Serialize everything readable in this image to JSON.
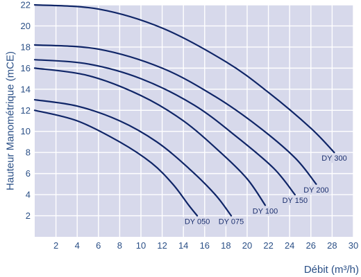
{
  "chart_data": {
    "type": "line",
    "title": "",
    "xlabel": "Débit (m³/h)",
    "ylabel": "Hauteur Manométrique (mCE)",
    "xlim": [
      0,
      30
    ],
    "ylim": [
      0,
      22
    ],
    "x_ticks": [
      2,
      4,
      6,
      8,
      10,
      12,
      14,
      16,
      18,
      20,
      22,
      24,
      26,
      28,
      30
    ],
    "y_ticks": [
      2,
      4,
      6,
      8,
      10,
      12,
      14,
      16,
      18,
      20,
      22
    ],
    "grid": true,
    "colors": {
      "plot_background": "#d7d9eb",
      "grid": "#ffffff",
      "curve": "#0f2567",
      "text": "#2a4f86"
    },
    "series": [
      {
        "name": "DY 050",
        "x": [
          0,
          4,
          8,
          11,
          13,
          14.5,
          15.3
        ],
        "y": [
          12,
          11,
          9,
          7,
          5,
          3,
          2
        ]
      },
      {
        "name": "DY 075",
        "x": [
          0,
          4,
          8,
          11.5,
          14.5,
          17,
          18.5
        ],
        "y": [
          13,
          12.4,
          11,
          9,
          6.5,
          4,
          2
        ]
      },
      {
        "name": "DY 100",
        "x": [
          0,
          5,
          10,
          14,
          17.5,
          20,
          21.7
        ],
        "y": [
          16,
          15.3,
          13.4,
          11,
          8,
          5.5,
          3
        ]
      },
      {
        "name": "DY 150",
        "x": [
          0,
          5,
          10,
          15,
          19,
          22.5,
          24.5
        ],
        "y": [
          16.8,
          16.4,
          15,
          12.5,
          9.5,
          6.5,
          4
        ]
      },
      {
        "name": "DY 200",
        "x": [
          0,
          6,
          12,
          17,
          21,
          24.5,
          26.5
        ],
        "y": [
          18.2,
          17.8,
          16,
          13.3,
          10.5,
          7.5,
          5
        ]
      },
      {
        "name": "DY 300",
        "x": [
          0,
          6,
          12,
          18,
          22,
          26,
          28.2
        ],
        "y": [
          22,
          21.6,
          19.8,
          16.6,
          13.7,
          10.3,
          8
        ]
      }
    ]
  }
}
